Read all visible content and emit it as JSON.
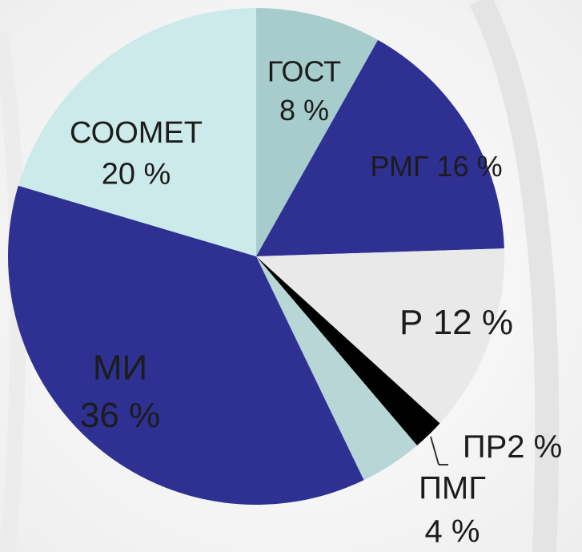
{
  "chart_data": {
    "type": "pie",
    "categories": [
      "ГОСТ",
      "РМГ",
      "Р",
      "ПР",
      "ПМГ",
      "МИ",
      "СООМЕТ"
    ],
    "values": [
      8,
      16,
      12,
      2,
      4,
      36,
      20
    ],
    "value_labels": [
      "8 %",
      "16 %",
      "12 %",
      "2 %",
      "4 %",
      "36 %",
      "20 %"
    ],
    "colors": [
      "#a6cccc",
      "#2e3192",
      "#e9e9e9",
      "#000000",
      "#b9d6d6",
      "#2e3192",
      "#cdeaea"
    ]
  }
}
